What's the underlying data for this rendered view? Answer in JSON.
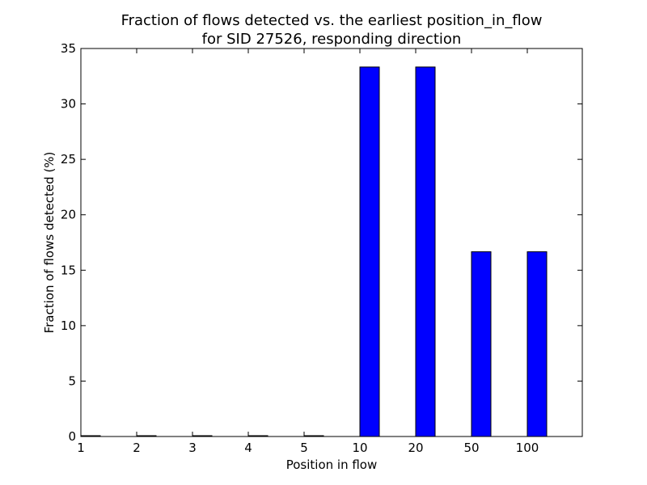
{
  "chart_data": {
    "type": "bar",
    "title": "Fraction of flows detected vs. the earliest position_in_flow",
    "subtitle": "for SID 27526, responding direction",
    "xlabel": "Position in flow",
    "ylabel": "Fraction of flows detected (%)",
    "categories": [
      "1",
      "2",
      "3",
      "4",
      "5",
      "10",
      "20",
      "50",
      "100"
    ],
    "values": [
      0,
      0,
      0,
      0,
      0,
      33.33,
      33.33,
      16.67,
      16.67
    ],
    "ylim": [
      0,
      35
    ],
    "yticks": [
      "0",
      "5",
      "10",
      "15",
      "20",
      "25",
      "30",
      "35"
    ],
    "bar_color": "#0000ff",
    "edge_color": "#000000",
    "grid": false,
    "legend": "none"
  }
}
